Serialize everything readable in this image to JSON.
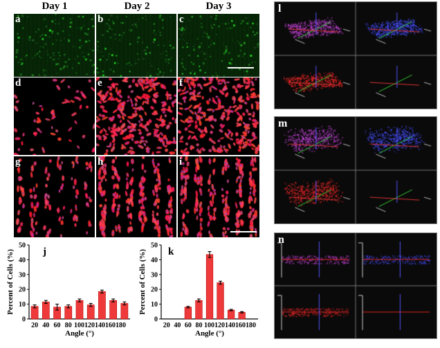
{
  "columns": [
    "Day 1",
    "Day 2",
    "Day 3"
  ],
  "panels": {
    "a": "a",
    "b": "b",
    "c": "c",
    "d": "d",
    "e": "e",
    "f": "f",
    "g": "g",
    "h": "h",
    "i": "i",
    "j": "j",
    "k": "k",
    "l": "l",
    "m": "m",
    "n": "n"
  },
  "colors": {
    "green_fluorescence": "#2ecc40",
    "red_fluorescence": "#ff2a3a",
    "blue_fluorescence": "#3a3aff",
    "bar_fill": "#ee3a3a",
    "bar_outline": "#c00000"
  },
  "chart_data": [
    {
      "type": "bar",
      "panel": "j",
      "categories": [
        "20",
        "40",
        "60",
        "80",
        "100",
        "120",
        "140",
        "160",
        "180"
      ],
      "tick_labels": [
        "20",
        "40",
        "60",
        "80",
        "100120140160180"
      ],
      "values": [
        8.5,
        11.5,
        8.0,
        8.5,
        12.5,
        9.5,
        18.5,
        12.5,
        10.5
      ],
      "errors": [
        1.0,
        1.0,
        2.0,
        1.0,
        1.0,
        1.0,
        1.0,
        1.0,
        1.0
      ],
      "xlabel": "Angle (°)",
      "ylabel": "Percent of Cells (%)",
      "ylim": [
        0,
        50
      ],
      "yticks": [
        0,
        10,
        20,
        30,
        40,
        50
      ]
    },
    {
      "type": "bar",
      "panel": "k",
      "categories": [
        "20",
        "40",
        "60",
        "80",
        "100",
        "120",
        "140",
        "160",
        "180"
      ],
      "tick_labels": [
        "20",
        "40",
        "60",
        "80",
        "100120140160180"
      ],
      "values": [
        0,
        0,
        8.0,
        12.5,
        43.5,
        24.5,
        6.0,
        4.5,
        0
      ],
      "errors": [
        0,
        0,
        0.5,
        1.0,
        2.0,
        1.0,
        0.5,
        0.5,
        0
      ],
      "xlabel": "Angle (°)",
      "ylabel": "Percent of Cells (%)",
      "ylim": [
        0,
        50
      ],
      "yticks": [
        0,
        10,
        20,
        30,
        40,
        50
      ]
    }
  ]
}
